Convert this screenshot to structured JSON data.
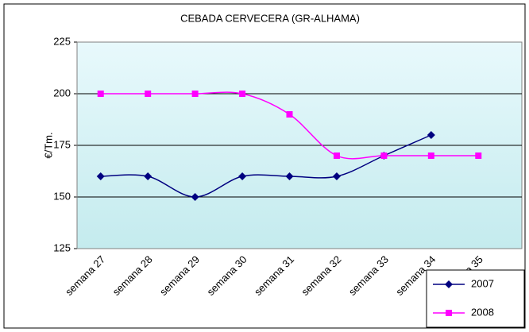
{
  "chart_data": {
    "type": "line",
    "title": "CEBADA CERVECERA (GR-ALHAMA)",
    "y_label": "€/Tm.",
    "categories": [
      "semana 27",
      "semana 28",
      "semana 29",
      "semana 30",
      "semana 31",
      "semana 32",
      "semana 33",
      "semana 34",
      "semana 35"
    ],
    "series": [
      {
        "name": "2007",
        "color": "#000080",
        "marker": "diamond",
        "values": [
          160,
          160,
          150,
          160,
          160,
          160,
          170,
          180,
          null
        ]
      },
      {
        "name": "2008",
        "color": "#ff00ff",
        "marker": "square",
        "values": [
          200,
          200,
          200,
          200,
          190,
          170,
          170,
          170,
          170
        ]
      }
    ],
    "ylim": [
      125,
      225
    ],
    "yticks": [
      125,
      150,
      175,
      200,
      225
    ],
    "grid": true,
    "smooth": true,
    "legend": "lower right"
  }
}
